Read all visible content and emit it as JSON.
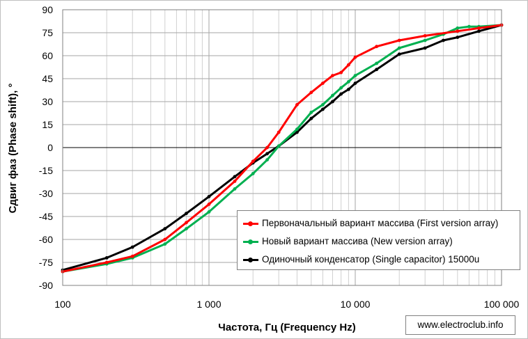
{
  "chart_data": {
    "type": "line",
    "xlabel": "Частота, Гц (Frequency Hz)",
    "ylabel": "Сдвиг фаз (Phase shift), °",
    "x_scale": "log",
    "xlim": [
      100,
      100000
    ],
    "ylim": [
      -90,
      90
    ],
    "x_ticks": [
      {
        "value": 100,
        "label": "100"
      },
      {
        "value": 1000,
        "label": "1 000"
      },
      {
        "value": 10000,
        "label": "10 000"
      },
      {
        "value": 100000,
        "label": "100 000"
      }
    ],
    "y_ticks": [
      90,
      75,
      60,
      45,
      30,
      15,
      0,
      -15,
      -30,
      -45,
      -60,
      -75,
      -90
    ],
    "grid": true,
    "legend_position": "right",
    "series": [
      {
        "name": "Первоначальный вариант массива (First version array)",
        "color": "#ff0000",
        "points": [
          [
            100,
            -81
          ],
          [
            200,
            -75
          ],
          [
            300,
            -71
          ],
          [
            500,
            -60
          ],
          [
            700,
            -49
          ],
          [
            1000,
            -37
          ],
          [
            1500,
            -22
          ],
          [
            2000,
            -9
          ],
          [
            2500,
            0
          ],
          [
            3000,
            10
          ],
          [
            4000,
            28
          ],
          [
            5000,
            36
          ],
          [
            6000,
            42
          ],
          [
            7000,
            47
          ],
          [
            8000,
            49
          ],
          [
            9000,
            54
          ],
          [
            10000,
            59
          ],
          [
            14000,
            66
          ],
          [
            20000,
            70
          ],
          [
            30000,
            73
          ],
          [
            50000,
            76
          ],
          [
            70000,
            78
          ],
          [
            100000,
            80
          ]
        ]
      },
      {
        "name": "Новый вариант массива (New version array)",
        "color": "#00b050",
        "points": [
          [
            100,
            -81
          ],
          [
            200,
            -76
          ],
          [
            300,
            -72
          ],
          [
            500,
            -63
          ],
          [
            700,
            -53
          ],
          [
            1000,
            -42
          ],
          [
            1500,
            -27
          ],
          [
            2000,
            -17
          ],
          [
            2500,
            -8
          ],
          [
            3000,
            1
          ],
          [
            4000,
            12
          ],
          [
            5000,
            23
          ],
          [
            6000,
            28
          ],
          [
            7000,
            34
          ],
          [
            8000,
            39
          ],
          [
            9000,
            43
          ],
          [
            10000,
            47
          ],
          [
            14000,
            55
          ],
          [
            20000,
            65
          ],
          [
            30000,
            70
          ],
          [
            40000,
            74
          ],
          [
            50000,
            78
          ],
          [
            60000,
            79
          ],
          [
            70000,
            79
          ],
          [
            100000,
            80
          ]
        ]
      },
      {
        "name": "Одиночный конденсатор (Single capacitor) 15000u",
        "color": "#000000",
        "points": [
          [
            100,
            -80
          ],
          [
            200,
            -72
          ],
          [
            300,
            -65
          ],
          [
            500,
            -53
          ],
          [
            700,
            -43
          ],
          [
            1000,
            -32
          ],
          [
            1500,
            -19
          ],
          [
            2000,
            -10
          ],
          [
            2500,
            -4
          ],
          [
            3000,
            1
          ],
          [
            4000,
            10
          ],
          [
            5000,
            19
          ],
          [
            6000,
            25
          ],
          [
            7000,
            30
          ],
          [
            8000,
            35
          ],
          [
            9000,
            38
          ],
          [
            10000,
            42
          ],
          [
            14000,
            51
          ],
          [
            20000,
            61
          ],
          [
            30000,
            65
          ],
          [
            40000,
            70
          ],
          [
            50000,
            72
          ],
          [
            70000,
            76
          ],
          [
            100000,
            80
          ]
        ]
      }
    ]
  },
  "watermark": "www.electroclub.info"
}
